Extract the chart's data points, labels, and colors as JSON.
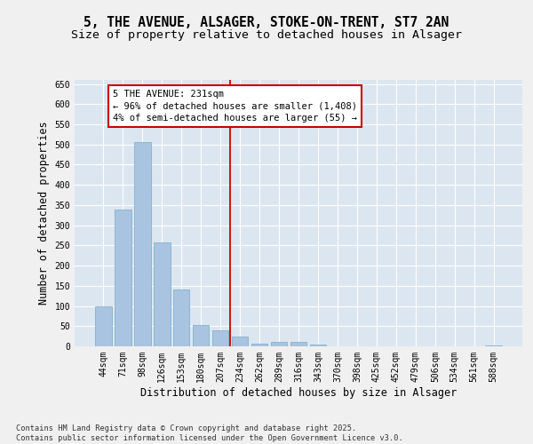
{
  "title1": "5, THE AVENUE, ALSAGER, STOKE-ON-TRENT, ST7 2AN",
  "title2": "Size of property relative to detached houses in Alsager",
  "xlabel": "Distribution of detached houses by size in Alsager",
  "ylabel": "Number of detached properties",
  "bar_labels": [
    "44sqm",
    "71sqm",
    "98sqm",
    "126sqm",
    "153sqm",
    "180sqm",
    "207sqm",
    "234sqm",
    "262sqm",
    "289sqm",
    "316sqm",
    "343sqm",
    "370sqm",
    "398sqm",
    "425sqm",
    "452sqm",
    "479sqm",
    "506sqm",
    "534sqm",
    "561sqm",
    "588sqm"
  ],
  "bar_values": [
    100,
    338,
    505,
    257,
    140,
    53,
    39,
    24,
    7,
    10,
    11,
    4,
    0,
    0,
    0,
    0,
    0,
    0,
    0,
    0,
    3
  ],
  "bar_color": "#a8c4e0",
  "bar_edge_color": "#7aaac8",
  "property_bin_index": 7,
  "vline_color": "#cc0000",
  "annotation_line1": "5 THE AVENUE: 231sqm",
  "annotation_line2": "← 96% of detached houses are smaller (1,408)",
  "annotation_line3": "4% of semi-detached houses are larger (55) →",
  "annotation_box_color": "#cc0000",
  "ylim": [
    0,
    660
  ],
  "yticks": [
    0,
    50,
    100,
    150,
    200,
    250,
    300,
    350,
    400,
    450,
    500,
    550,
    600,
    650
  ],
  "plot_bg_color": "#dce6f0",
  "fig_bg_color": "#f0f0f0",
  "grid_color": "#ffffff",
  "footer_text": "Contains HM Land Registry data © Crown copyright and database right 2025.\nContains public sector information licensed under the Open Government Licence v3.0.",
  "title_fontsize": 10.5,
  "subtitle_fontsize": 9.5,
  "axis_label_fontsize": 8.5,
  "tick_fontsize": 7,
  "annotation_fontsize": 7.5,
  "footer_fontsize": 6.2
}
